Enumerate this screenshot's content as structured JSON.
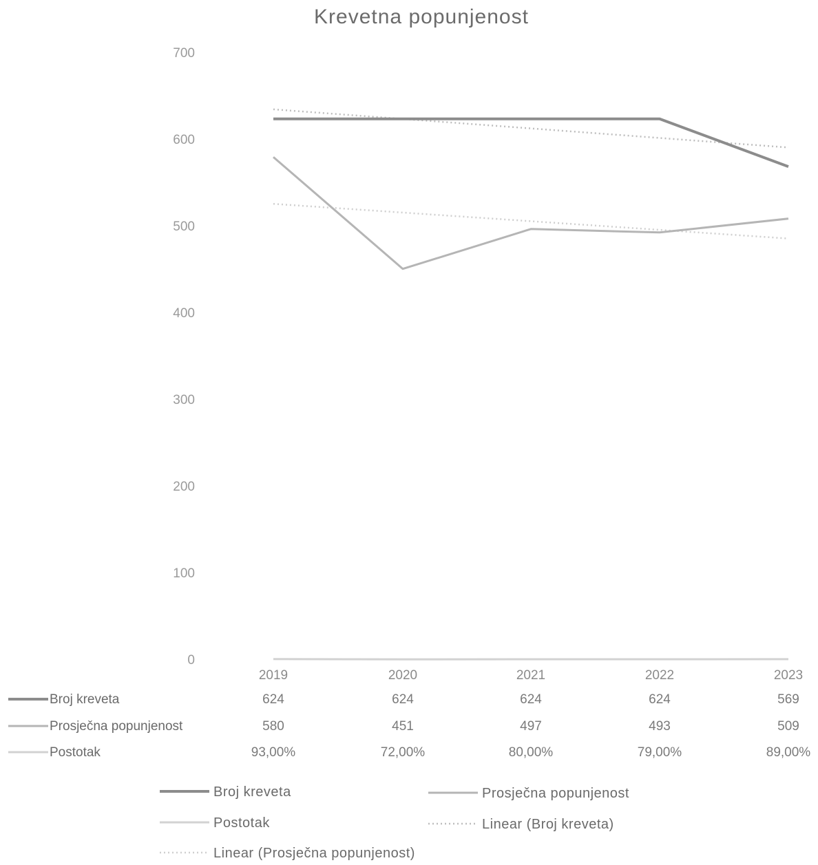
{
  "chart_data": {
    "type": "line",
    "title": "Krevetna popunjenost",
    "categories": [
      "2019",
      "2020",
      "2021",
      "2022",
      "2023"
    ],
    "ylim": [
      0,
      700
    ],
    "yticks": [
      "0",
      "100",
      "200",
      "300",
      "400",
      "500",
      "600",
      "700"
    ],
    "grid": false,
    "series": [
      {
        "name": "Broj kreveta",
        "values": [
          624,
          624,
          624,
          624,
          569
        ],
        "table_values": [
          "624",
          "624",
          "624",
          "624",
          "569"
        ],
        "color": "#8c8c8c"
      },
      {
        "name": "Prosječna popunjenost",
        "values": [
          580,
          451,
          497,
          493,
          509
        ],
        "table_values": [
          "580",
          "451",
          "497",
          "493",
          "509"
        ],
        "color": "#b5b5b5"
      },
      {
        "name": "Postotak",
        "values": [
          0.93,
          0.72,
          0.8,
          0.79,
          0.89
        ],
        "table_values": [
          "93,00%",
          "72,00%",
          "80,00%",
          "79,00%",
          "89,00%"
        ],
        "color": "#d2d2d2"
      }
    ],
    "trendlines": [
      {
        "name": "Linear (Broj kreveta)",
        "of": "Broj kreveta",
        "color": "#bdbdbd"
      },
      {
        "name": "Linear (Prosječna popunjenost)",
        "of": "Prosječna popunjenost",
        "color": "#cfcfcf"
      }
    ],
    "legend_position": "bottom",
    "data_table": true
  }
}
